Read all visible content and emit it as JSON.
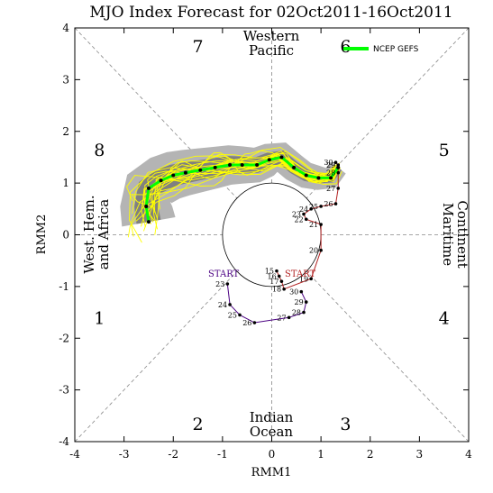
{
  "chart_data": {
    "type": "line",
    "title": "MJO Index Forecast for 02Oct2011-16Oct2011",
    "xlabel": "RMM1",
    "ylabel": "RMM2",
    "xlim": [
      -4,
      4
    ],
    "ylim": [
      -4,
      4
    ],
    "xticks": [
      "-4",
      "-3",
      "-2",
      "-1",
      "0",
      "1",
      "2",
      "3",
      "4"
    ],
    "yticks": [
      "-4",
      "-3",
      "-2",
      "-1",
      "0",
      "1",
      "2",
      "3",
      "4"
    ],
    "grid": false,
    "legend_position": "top-right",
    "phase_labels": [
      {
        "label": "1",
        "x": -3.5,
        "y": -1.6
      },
      {
        "label": "2",
        "x": -1.5,
        "y": -3.65
      },
      {
        "label": "3",
        "x": 1.5,
        "y": -3.65
      },
      {
        "label": "4",
        "x": 3.5,
        "y": -1.6
      },
      {
        "label": "5",
        "x": 3.5,
        "y": 1.65
      },
      {
        "label": "6",
        "x": 1.5,
        "y": 3.65
      },
      {
        "label": "7",
        "x": -1.5,
        "y": 3.65
      },
      {
        "label": "8",
        "x": -3.5,
        "y": 1.65
      }
    ],
    "region_labels": {
      "top": [
        "Western",
        "Pacific"
      ],
      "bottom": [
        "Indian",
        "Ocean"
      ],
      "left": [
        "West. Hem.",
        "and Africa"
      ],
      "right": [
        "Maritime",
        "Continent"
      ]
    },
    "start_labels": {
      "observed": "START",
      "forecast": "START"
    },
    "observed_track": {
      "color": "#4b0082",
      "start_label": "START",
      "points": [
        {
          "day": "23",
          "x": -0.9,
          "y": -0.95
        },
        {
          "day": "24",
          "x": -0.85,
          "y": -1.35
        },
        {
          "day": "25",
          "x": -0.65,
          "y": -1.55
        },
        {
          "day": "26",
          "x": -0.35,
          "y": -1.7
        },
        {
          "day": "27",
          "x": 0.35,
          "y": -1.6
        },
        {
          "day": "28",
          "x": 0.65,
          "y": -1.5
        },
        {
          "day": "29",
          "x": 0.7,
          "y": -1.3
        },
        {
          "day": "30",
          "x": 0.6,
          "y": -1.1
        }
      ]
    },
    "analysis_track": {
      "color": "#b22222",
      "points": [
        {
          "day": "15",
          "x": 0.1,
          "y": -0.7
        },
        {
          "day": "16",
          "x": 0.15,
          "y": -0.8
        },
        {
          "day": "17",
          "x": 0.2,
          "y": -0.9
        },
        {
          "day": "18",
          "x": 0.25,
          "y": -1.05
        },
        {
          "day": "19",
          "x": 0.8,
          "y": -0.85
        },
        {
          "day": "20",
          "x": 1.0,
          "y": -0.3
        },
        {
          "day": "21",
          "x": 1.0,
          "y": 0.2
        },
        {
          "day": "22",
          "x": 0.7,
          "y": 0.3
        },
        {
          "day": "23",
          "x": 0.65,
          "y": 0.4
        },
        {
          "day": "24",
          "x": 0.8,
          "y": 0.5
        },
        {
          "day": "25",
          "x": 1.0,
          "y": 0.55
        },
        {
          "day": "26",
          "x": 1.3,
          "y": 0.6
        },
        {
          "day": "27",
          "x": 1.35,
          "y": 0.9
        },
        {
          "day": "28",
          "x": 1.35,
          "y": 1.2
        },
        {
          "day": "29",
          "x": 1.35,
          "y": 1.35
        },
        {
          "day": "30",
          "x": 1.3,
          "y": 1.4
        }
      ]
    },
    "forecast_mean": {
      "name": "NCEP GEFS",
      "color": "#00ff00",
      "points": [
        {
          "x": 1.35,
          "y": 1.3
        },
        {
          "x": 1.2,
          "y": 1.1
        },
        {
          "x": 0.95,
          "y": 1.1
        },
        {
          "x": 0.7,
          "y": 1.15
        },
        {
          "x": 0.45,
          "y": 1.3
        },
        {
          "x": 0.2,
          "y": 1.5
        },
        {
          "x": -0.05,
          "y": 1.45
        },
        {
          "x": -0.3,
          "y": 1.35
        },
        {
          "x": -0.6,
          "y": 1.35
        },
        {
          "x": -0.85,
          "y": 1.35
        },
        {
          "x": -1.15,
          "y": 1.3
        },
        {
          "x": -1.45,
          "y": 1.25
        },
        {
          "x": -1.75,
          "y": 1.2
        },
        {
          "x": -2.0,
          "y": 1.15
        },
        {
          "x": -2.25,
          "y": 1.05
        },
        {
          "x": -2.5,
          "y": 0.9
        },
        {
          "x": -2.55,
          "y": 0.55
        },
        {
          "x": -2.5,
          "y": 0.25
        }
      ]
    },
    "ensemble_members_color": "#ffff00",
    "spread_inner_color": "#808080",
    "spread_outer_color": "#b4b4b4"
  },
  "legend": {
    "label": "NCEP GEFS",
    "color": "#00ff00"
  }
}
